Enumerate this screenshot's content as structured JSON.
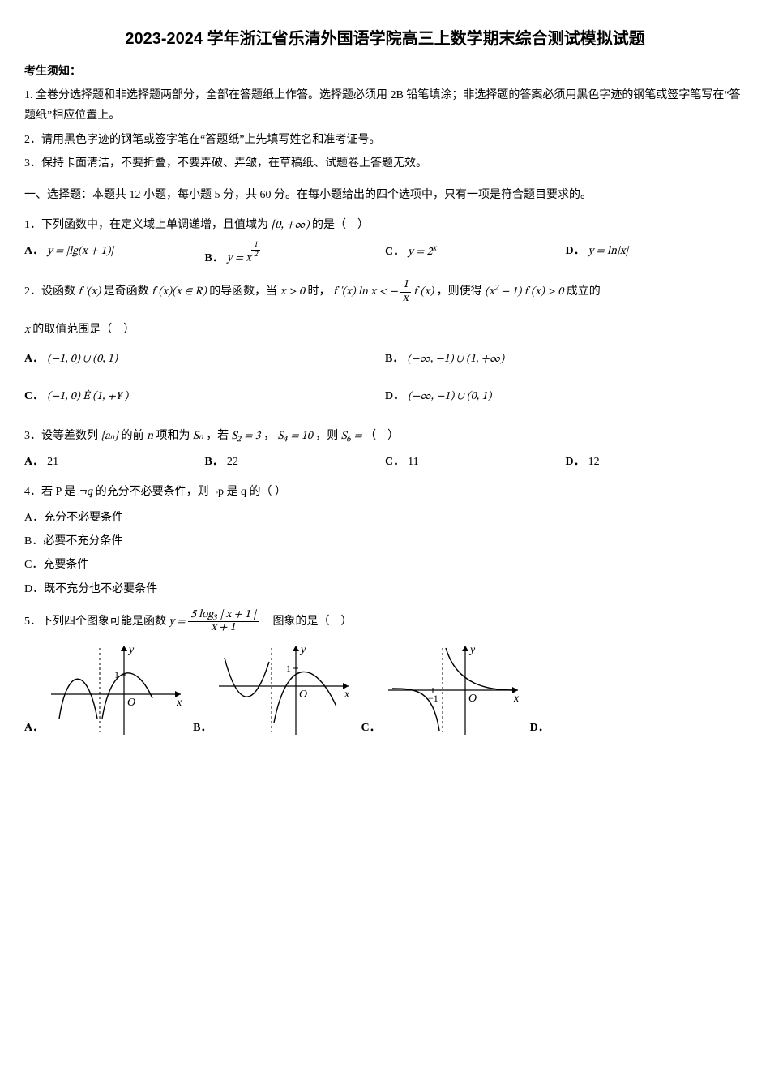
{
  "title": "2023-2024 学年浙江省乐清外国语学院高三上数学期末综合测试模拟试题",
  "instr_heading": "考生须知：",
  "instr_1": "1. 全卷分选择题和非选择题两部分，全部在答题纸上作答。选择题必须用 2B 铅笔填涂；非选择题的答案必须用黑色字迹的钢笔或签字笔写在“答题纸”相应位置上。",
  "instr_2": "2．请用黑色字迹的钢笔或签字笔在“答题纸”上先填写姓名和准考证号。",
  "instr_3": "3．保持卡面清洁，不要折叠，不要弄破、弄皱，在草稿纸、试题卷上答题无效。",
  "section1": "一、选择题：本题共 12 小题，每小题 5 分，共 60 分。在每小题给出的四个选项中，只有一项是符合题目要求的。",
  "q1_text_a": "1．下列函数中，在定义域上单调递增，且值域为",
  "q1_range": "[0, +∞)",
  "q1_text_b": "的是（　）",
  "q1_A": "y = |lg(x + 1)|",
  "q1_B_num": "1",
  "q1_B_den": "2",
  "q1_B_prefix": "y = x",
  "q1_C": "y = 2",
  "q1_C_sup": "x",
  "q1_D": "y = ln|x|",
  "q2_a": "2．设函数 ",
  "q2_b": " 是奇函数 ",
  "q2_c": " 的导函数，当 ",
  "q2_d": " 时，",
  "q2_e": "，则使得 ",
  "q2_f": " 成立的",
  "q2_line2": " 的取值范围是（　）",
  "q2_fprime": "f '(x)",
  "q2_fx": "f (x)(x ∈ R)",
  "q2_cond1": "x > 0",
  "q2_ineq_l": "f '(x) ln x < − ",
  "q2_ineq_frac_num": "1",
  "q2_ineq_frac_den": "x",
  "q2_ineq_r": " f (x)",
  "q2_cond2_l": "(x",
  "q2_cond2_sup": "2",
  "q2_cond2_r": " − 1) f (x) > 0",
  "q2_xvar": "x",
  "q2_A": "(−1, 0) ∪ (0, 1)",
  "q2_B": "(−∞, −1) ∪ (1, +∞)",
  "q2_C": "(−1, 0) È (1, +¥ )",
  "q2_D": "(−∞, −1) ∪ (0, 1)",
  "q3_a": "3．设等差数列 ",
  "q3_seq": "{aₙ}",
  "q3_b": " 的前 ",
  "q3_n": "n",
  "q3_c": " 项和为 ",
  "q3_Sn": "Sₙ",
  "q3_d": "，若 ",
  "q3_S2": "S₂ = 3",
  "q3_e": "，",
  "q3_S4": "S₄ = 10",
  "q3_f": "，则 ",
  "q3_S6": "S₆ =",
  "q3_g": "（　）",
  "q3_A_label": "A．",
  "q3_A": "21",
  "q3_B_label": "B．",
  "q3_B": "22",
  "q3_C_label": "C．",
  "q3_C_val": "11",
  "q3_D_label": "D．",
  "q3_D": "12",
  "q4_a": "4．若 P 是 ",
  "q4_notq": "¬q",
  "q4_b": " 的充分不必要条件，则 ¬p 是 q 的（ ）",
  "q4_A": "A．充分不必要条件",
  "q4_B": "B．必要不充分条件",
  "q4_C": "C．充要条件",
  "q4_D": "D．既不充分也不必要条件",
  "q5_a": "5．下列四个图象可能是函数",
  "q5_lhs": "y = ",
  "q5_num": "5 log₃ | x + 1 |",
  "q5_den": "x + 1",
  "q5_b": "　图象的是（　）",
  "glabel_A": "A．",
  "glabel_B": "B．",
  "glabel_C": "C．",
  "glabel_D": "D．",
  "axis_x": "x",
  "axis_y": "y",
  "axis_O": "O",
  "tick_1": "1",
  "tick_neg1": "−1",
  "graph": {
    "width": 170,
    "height": 120,
    "stroke": "#000000",
    "dash": "3,3",
    "axis_stroke_width": 1.2,
    "curve_stroke_width": 1.4,
    "font_size": 14,
    "label_font": "italic 14px serif"
  }
}
